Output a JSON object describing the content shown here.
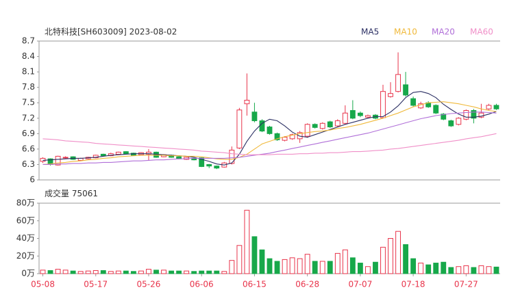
{
  "chart_data": {
    "type": "candlestick",
    "title": "北特科技[SH603009] 2023-08-02",
    "categories": [
      "05-08",
      null,
      null,
      null,
      null,
      null,
      null,
      "05-17",
      null,
      null,
      null,
      null,
      null,
      null,
      "05-26",
      null,
      null,
      null,
      null,
      null,
      null,
      "06-06",
      null,
      null,
      null,
      null,
      null,
      null,
      "06-15",
      null,
      null,
      null,
      null,
      null,
      null,
      "06-28",
      null,
      null,
      null,
      null,
      null,
      null,
      "07-07",
      null,
      null,
      null,
      null,
      null,
      null,
      "07-18",
      null,
      null,
      null,
      null,
      null,
      null,
      "07-27",
      null,
      null,
      null,
      null
    ],
    "open": [
      6.36,
      6.41,
      6.29,
      6.43,
      6.45,
      6.38,
      6.41,
      6.43,
      6.5,
      6.47,
      6.5,
      6.55,
      6.52,
      6.49,
      6.5,
      6.54,
      6.45,
      6.48,
      6.45,
      6.4,
      6.42,
      6.43,
      6.3,
      6.27,
      6.25,
      6.32,
      6.62,
      7.48,
      7.32,
      7.15,
      7.03,
      6.9,
      6.77,
      6.8,
      6.8,
      6.85,
      7.08,
      7.0,
      7.13,
      7.05,
      7.1,
      7.35,
      7.3,
      7.22,
      7.26,
      7.21,
      7.62,
      7.72,
      7.85,
      7.58,
      7.4,
      7.5,
      7.45,
      7.28,
      7.15,
      7.08,
      7.18,
      7.35,
      7.22,
      7.38,
      7.45
    ],
    "high": [
      6.44,
      6.42,
      6.47,
      6.46,
      6.46,
      6.43,
      6.45,
      6.49,
      6.51,
      6.53,
      6.55,
      6.56,
      6.53,
      6.54,
      6.6,
      6.55,
      6.5,
      6.49,
      6.46,
      6.45,
      6.43,
      6.44,
      6.31,
      6.28,
      6.35,
      6.65,
      7.4,
      8.07,
      7.5,
      7.18,
      7.05,
      6.92,
      6.85,
      6.9,
      6.95,
      7.1,
      7.1,
      7.12,
      7.15,
      7.18,
      7.45,
      7.55,
      7.33,
      7.27,
      7.28,
      7.85,
      7.9,
      8.48,
      8.1,
      7.62,
      7.52,
      7.53,
      7.47,
      7.3,
      7.17,
      7.22,
      7.37,
      7.38,
      7.48,
      7.48,
      7.48
    ],
    "low": [
      6.33,
      6.28,
      6.28,
      6.41,
      6.39,
      6.37,
      6.4,
      6.42,
      6.46,
      6.46,
      6.49,
      6.5,
      6.47,
      6.48,
      6.38,
      6.43,
      6.44,
      6.43,
      6.4,
      6.39,
      6.38,
      6.25,
      6.23,
      6.21,
      6.24,
      6.3,
      6.6,
      7.25,
      7.12,
      6.93,
      6.88,
      6.76,
      6.75,
      6.78,
      6.72,
      6.82,
      7.0,
      6.98,
      7.01,
      7.03,
      7.08,
      7.18,
      7.22,
      7.2,
      7.18,
      7.2,
      7.6,
      7.7,
      7.62,
      7.43,
      7.38,
      7.4,
      7.28,
      7.16,
      7.03,
      7.06,
      7.16,
      7.1,
      7.2,
      7.36,
      7.36
    ],
    "close": [
      6.42,
      6.3,
      6.46,
      6.44,
      6.4,
      6.42,
      6.44,
      6.48,
      6.47,
      6.51,
      6.54,
      6.51,
      6.48,
      6.53,
      6.54,
      6.44,
      6.49,
      6.44,
      6.41,
      6.44,
      6.39,
      6.26,
      6.27,
      6.23,
      6.33,
      6.58,
      7.36,
      7.55,
      7.15,
      6.95,
      6.9,
      6.78,
      6.83,
      6.88,
      6.92,
      7.08,
      7.02,
      7.1,
      7.03,
      7.15,
      7.3,
      7.2,
      7.25,
      7.25,
      7.2,
      7.72,
      7.68,
      8.05,
      7.65,
      7.45,
      7.48,
      7.42,
      7.3,
      7.18,
      7.05,
      7.2,
      7.35,
      7.2,
      7.3,
      7.45,
      7.38
    ],
    "up_color": "#e8334a",
    "down_color": "#17a84a",
    "series": [
      {
        "name": "MA5",
        "color": "#2b2f63",
        "values": [
          6.38,
          6.39,
          6.4,
          6.41,
          6.42,
          6.42,
          6.43,
          6.44,
          6.46,
          6.48,
          6.49,
          6.5,
          6.51,
          6.51,
          6.51,
          6.5,
          6.49,
          6.48,
          6.47,
          6.46,
          6.44,
          6.4,
          6.36,
          6.31,
          6.29,
          6.33,
          6.5,
          6.75,
          6.95,
          7.1,
          7.18,
          7.15,
          7.05,
          6.93,
          6.85,
          6.83,
          6.88,
          6.93,
          6.98,
          7.03,
          7.08,
          7.12,
          7.16,
          7.2,
          7.23,
          7.23,
          7.32,
          7.44,
          7.6,
          7.7,
          7.72,
          7.68,
          7.6,
          7.47,
          7.37,
          7.28,
          7.22,
          7.22,
          7.24,
          7.28,
          7.33
        ]
      },
      {
        "name": "MA10",
        "color": "#f0b93a",
        "values": [
          6.3,
          6.31,
          6.33,
          6.34,
          6.36,
          6.37,
          6.39,
          6.4,
          6.42,
          6.43,
          6.45,
          6.46,
          6.47,
          6.48,
          6.48,
          6.48,
          6.48,
          6.47,
          6.47,
          6.46,
          6.46,
          6.45,
          6.43,
          6.41,
          6.4,
          6.4,
          6.44,
          6.5,
          6.6,
          6.7,
          6.75,
          6.8,
          6.84,
          6.87,
          6.9,
          6.92,
          6.94,
          6.95,
          6.97,
          7.0,
          7.02,
          7.05,
          7.08,
          7.12,
          7.16,
          7.2,
          7.25,
          7.3,
          7.36,
          7.42,
          7.46,
          7.5,
          7.51,
          7.52,
          7.5,
          7.48,
          7.45,
          7.42,
          7.38,
          7.35,
          7.33
        ]
      },
      {
        "name": "MA20",
        "color": "#b06fd8",
        "values": [
          6.3,
          6.3,
          6.31,
          6.31,
          6.32,
          6.32,
          6.33,
          6.33,
          6.34,
          6.34,
          6.35,
          6.36,
          6.37,
          6.37,
          6.38,
          6.39,
          6.39,
          6.4,
          6.41,
          6.41,
          6.42,
          6.42,
          6.42,
          6.42,
          6.42,
          6.43,
          6.44,
          6.46,
          6.48,
          6.5,
          6.52,
          6.55,
          6.58,
          6.61,
          6.64,
          6.67,
          6.7,
          6.73,
          6.76,
          6.79,
          6.82,
          6.85,
          6.88,
          6.91,
          6.95,
          6.99,
          7.03,
          7.07,
          7.11,
          7.15,
          7.19,
          7.22,
          7.25,
          7.27,
          7.29,
          7.3,
          7.31,
          7.32,
          7.32,
          7.31,
          7.3
        ]
      },
      {
        "name": "MA60",
        "color": "#f08fc8",
        "values": [
          6.8,
          6.79,
          6.78,
          6.76,
          6.75,
          6.74,
          6.73,
          6.71,
          6.7,
          6.69,
          6.68,
          6.67,
          6.66,
          6.65,
          6.64,
          6.63,
          6.62,
          6.61,
          6.6,
          6.59,
          6.58,
          6.56,
          6.55,
          6.54,
          6.53,
          6.51,
          6.5,
          6.49,
          6.49,
          6.49,
          6.49,
          6.5,
          6.5,
          6.5,
          6.51,
          6.51,
          6.52,
          6.52,
          6.53,
          6.53,
          6.54,
          6.55,
          6.55,
          6.56,
          6.57,
          6.58,
          6.6,
          6.61,
          6.63,
          6.65,
          6.67,
          6.69,
          6.71,
          6.73,
          6.75,
          6.77,
          6.8,
          6.82,
          6.84,
          6.87,
          6.9
        ]
      }
    ],
    "ylim": [
      6,
      8.7
    ],
    "yticks": [
      6,
      6.3,
      6.6,
      6.9,
      7.2,
      7.5,
      7.8,
      8.1,
      8.4,
      8.7
    ],
    "volume": {
      "title": "成交量",
      "latest": 75061,
      "values": [
        4,
        3.5,
        5,
        4,
        3,
        2.5,
        3,
        3.5,
        3.5,
        2.5,
        3,
        3,
        2.5,
        3,
        5,
        4,
        4,
        3,
        3,
        3,
        2.5,
        3,
        3,
        3,
        2.5,
        15,
        32,
        72,
        42,
        27,
        17,
        14,
        16,
        18,
        17,
        22,
        14,
        14,
        14,
        23,
        27,
        18,
        12,
        8,
        13,
        30,
        40,
        48,
        33,
        17,
        12,
        10,
        12,
        13,
        7,
        8,
        9,
        7,
        9,
        8,
        7.5
      ],
      "ylim": [
        0,
        80
      ],
      "yticks": [
        {
          "value": 0,
          "label": "0万"
        },
        {
          "value": 20,
          "label": "20万"
        },
        {
          "value": 40,
          "label": "40万"
        },
        {
          "value": 60,
          "label": "60万"
        },
        {
          "value": 80,
          "label": "80万"
        }
      ]
    }
  }
}
